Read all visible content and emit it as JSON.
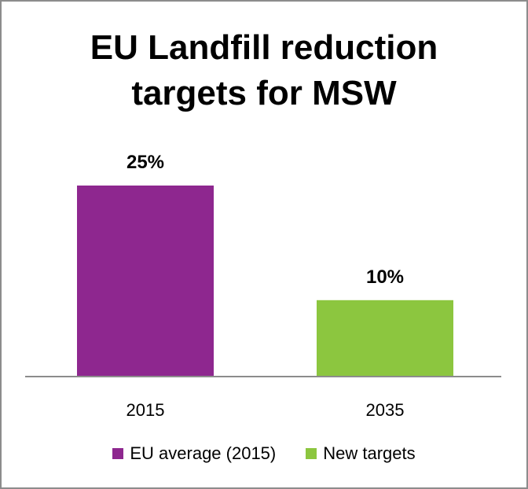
{
  "chart_data": {
    "type": "bar",
    "title_lines": [
      "EU Landfill reduction",
      "targets for MSW"
    ],
    "xlabel": "",
    "ylabel": "",
    "categories": [
      "2015",
      "2035"
    ],
    "values": [
      25,
      10
    ],
    "data_labels": [
      "25%",
      "10%"
    ],
    "series": [
      {
        "name": "EU average (2015)",
        "category": "2015",
        "value": 25,
        "color": "#8e278f"
      },
      {
        "name": "New targets",
        "category": "2035",
        "value": 10,
        "color": "#8cc63f"
      }
    ],
    "ylim": [
      0,
      25
    ],
    "grid": false,
    "legend_position": "bottom"
  }
}
